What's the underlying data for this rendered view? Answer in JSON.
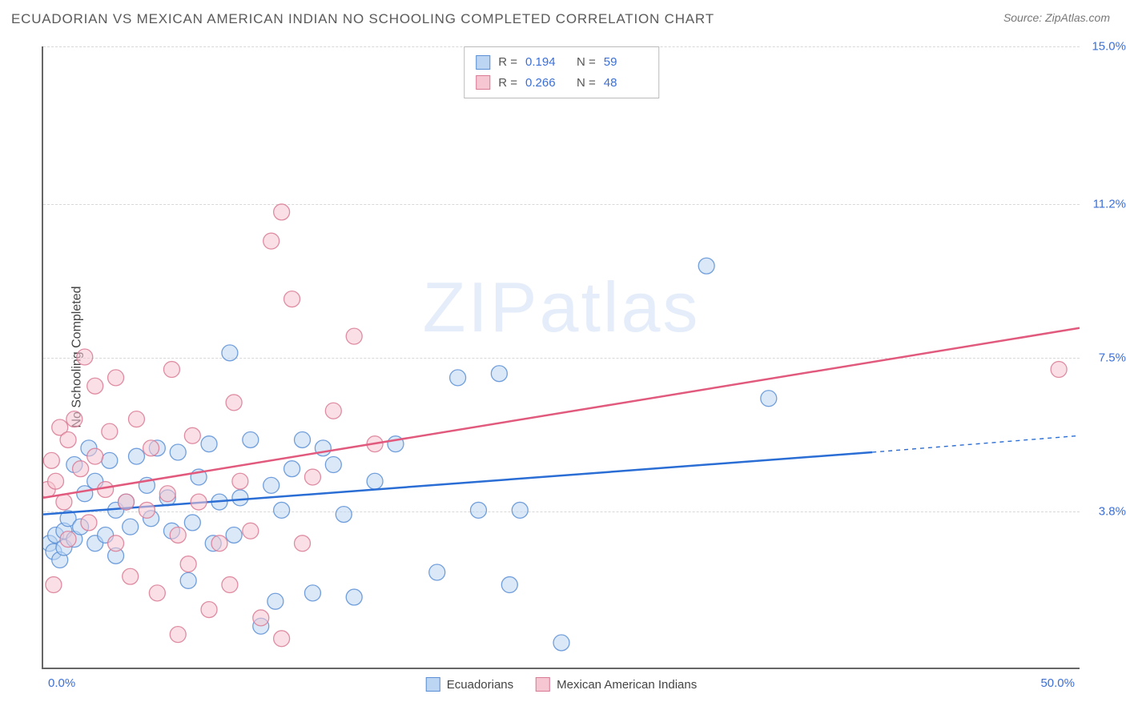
{
  "header": {
    "title": "ECUADORIAN VS MEXICAN AMERICAN INDIAN NO SCHOOLING COMPLETED CORRELATION CHART",
    "source": "Source: ZipAtlas.com"
  },
  "watermark": "ZIPatlas",
  "chart": {
    "type": "scatter",
    "ylabel": "No Schooling Completed",
    "xlim": [
      0,
      50
    ],
    "ylim": [
      0,
      15
    ],
    "x_ticks": [
      "0.0%",
      "50.0%"
    ],
    "y_ticks": [
      {
        "value": 3.8,
        "label": "3.8%"
      },
      {
        "value": 7.5,
        "label": "7.5%"
      },
      {
        "value": 11.2,
        "label": "11.2%"
      },
      {
        "value": 15.0,
        "label": "15.0%"
      }
    ],
    "grid_color": "#d8d8d8",
    "background_color": "#ffffff",
    "axis_color": "#666666",
    "marker_radius": 10,
    "marker_opacity": 0.55,
    "line_width": 2.5,
    "stats_box": {
      "rows": [
        {
          "swatch_fill": "#bcd5f2",
          "swatch_border": "#5a8fd6",
          "r_label": "R =",
          "r_value": "0.194",
          "n_label": "N =",
          "n_value": "59"
        },
        {
          "swatch_fill": "#f6c6d2",
          "swatch_border": "#d97a94",
          "r_label": "R =",
          "r_value": "0.266",
          "n_label": "N =",
          "n_value": "48"
        }
      ]
    },
    "series": [
      {
        "name": "Ecuadorians",
        "fill_color": "#bcd5f2",
        "border_color": "#5a8fd6",
        "line_color": "#2a6dd4",
        "trend": {
          "x1": 0,
          "y1": 3.7,
          "x2": 40,
          "y2": 5.2,
          "dash_x2": 50,
          "dash_y2": 5.6
        },
        "points": [
          [
            0.3,
            3.0
          ],
          [
            0.5,
            2.8
          ],
          [
            0.6,
            3.2
          ],
          [
            0.8,
            2.6
          ],
          [
            1.0,
            3.3
          ],
          [
            1.0,
            2.9
          ],
          [
            1.2,
            3.6
          ],
          [
            1.5,
            4.9
          ],
          [
            1.5,
            3.1
          ],
          [
            1.8,
            3.4
          ],
          [
            2.0,
            4.2
          ],
          [
            2.2,
            5.3
          ],
          [
            2.5,
            4.5
          ],
          [
            2.5,
            3.0
          ],
          [
            3.0,
            3.2
          ],
          [
            3.2,
            5.0
          ],
          [
            3.5,
            2.7
          ],
          [
            3.5,
            3.8
          ],
          [
            4.0,
            4.0
          ],
          [
            4.2,
            3.4
          ],
          [
            4.5,
            5.1
          ],
          [
            5.0,
            4.4
          ],
          [
            5.2,
            3.6
          ],
          [
            5.5,
            5.3
          ],
          [
            6.0,
            4.1
          ],
          [
            6.2,
            3.3
          ],
          [
            6.5,
            5.2
          ],
          [
            7.0,
            2.1
          ],
          [
            7.2,
            3.5
          ],
          [
            7.5,
            4.6
          ],
          [
            8.0,
            5.4
          ],
          [
            8.2,
            3.0
          ],
          [
            8.5,
            4.0
          ],
          [
            9.0,
            7.6
          ],
          [
            9.2,
            3.2
          ],
          [
            9.5,
            4.1
          ],
          [
            10.0,
            5.5
          ],
          [
            10.5,
            1.0
          ],
          [
            11.0,
            4.4
          ],
          [
            11.2,
            1.6
          ],
          [
            11.5,
            3.8
          ],
          [
            12.0,
            4.8
          ],
          [
            12.5,
            5.5
          ],
          [
            13.0,
            1.8
          ],
          [
            13.5,
            5.3
          ],
          [
            14.0,
            4.9
          ],
          [
            14.5,
            3.7
          ],
          [
            15.0,
            1.7
          ],
          [
            16.0,
            4.5
          ],
          [
            17.0,
            5.4
          ],
          [
            19.0,
            2.3
          ],
          [
            20.0,
            7.0
          ],
          [
            21.0,
            3.8
          ],
          [
            22.0,
            7.1
          ],
          [
            23.0,
            3.8
          ],
          [
            25.0,
            0.6
          ],
          [
            32.0,
            9.7
          ],
          [
            35.0,
            6.5
          ],
          [
            22.5,
            2.0
          ]
        ]
      },
      {
        "name": "Mexican American Indians",
        "fill_color": "#f6c6d2",
        "border_color": "#d97a94",
        "line_color": "#e15a7d",
        "trend": {
          "x1": 0,
          "y1": 4.1,
          "x2": 50,
          "y2": 8.2
        },
        "points": [
          [
            0.2,
            4.3
          ],
          [
            0.4,
            5.0
          ],
          [
            0.5,
            2.0
          ],
          [
            0.6,
            4.5
          ],
          [
            0.8,
            5.8
          ],
          [
            1.0,
            4.0
          ],
          [
            1.2,
            5.5
          ],
          [
            1.2,
            3.1
          ],
          [
            1.5,
            6.0
          ],
          [
            1.8,
            4.8
          ],
          [
            2.0,
            7.5
          ],
          [
            2.2,
            3.5
          ],
          [
            2.5,
            5.1
          ],
          [
            2.5,
            6.8
          ],
          [
            3.0,
            4.3
          ],
          [
            3.2,
            5.7
          ],
          [
            3.5,
            3.0
          ],
          [
            3.5,
            7.0
          ],
          [
            4.0,
            4.0
          ],
          [
            4.2,
            2.2
          ],
          [
            4.5,
            6.0
          ],
          [
            5.0,
            3.8
          ],
          [
            5.2,
            5.3
          ],
          [
            5.5,
            1.8
          ],
          [
            6.0,
            4.2
          ],
          [
            6.2,
            7.2
          ],
          [
            6.5,
            3.2
          ],
          [
            7.0,
            2.5
          ],
          [
            7.2,
            5.6
          ],
          [
            7.5,
            4.0
          ],
          [
            8.0,
            1.4
          ],
          [
            8.5,
            3.0
          ],
          [
            9.0,
            2.0
          ],
          [
            9.2,
            6.4
          ],
          [
            9.5,
            4.5
          ],
          [
            10.0,
            3.3
          ],
          [
            10.5,
            1.2
          ],
          [
            11.0,
            10.3
          ],
          [
            11.5,
            11.0
          ],
          [
            12.0,
            8.9
          ],
          [
            12.5,
            3.0
          ],
          [
            13.0,
            4.6
          ],
          [
            14.0,
            6.2
          ],
          [
            15.0,
            8.0
          ],
          [
            16.0,
            5.4
          ],
          [
            11.5,
            0.7
          ],
          [
            6.5,
            0.8
          ],
          [
            49.0,
            7.2
          ]
        ]
      }
    ],
    "legend_bottom": [
      {
        "swatch_fill": "#bcd5f2",
        "swatch_border": "#5a8fd6",
        "label": "Ecuadorians"
      },
      {
        "swatch_fill": "#f6c6d2",
        "swatch_border": "#d97a94",
        "label": "Mexican American Indians"
      }
    ]
  }
}
